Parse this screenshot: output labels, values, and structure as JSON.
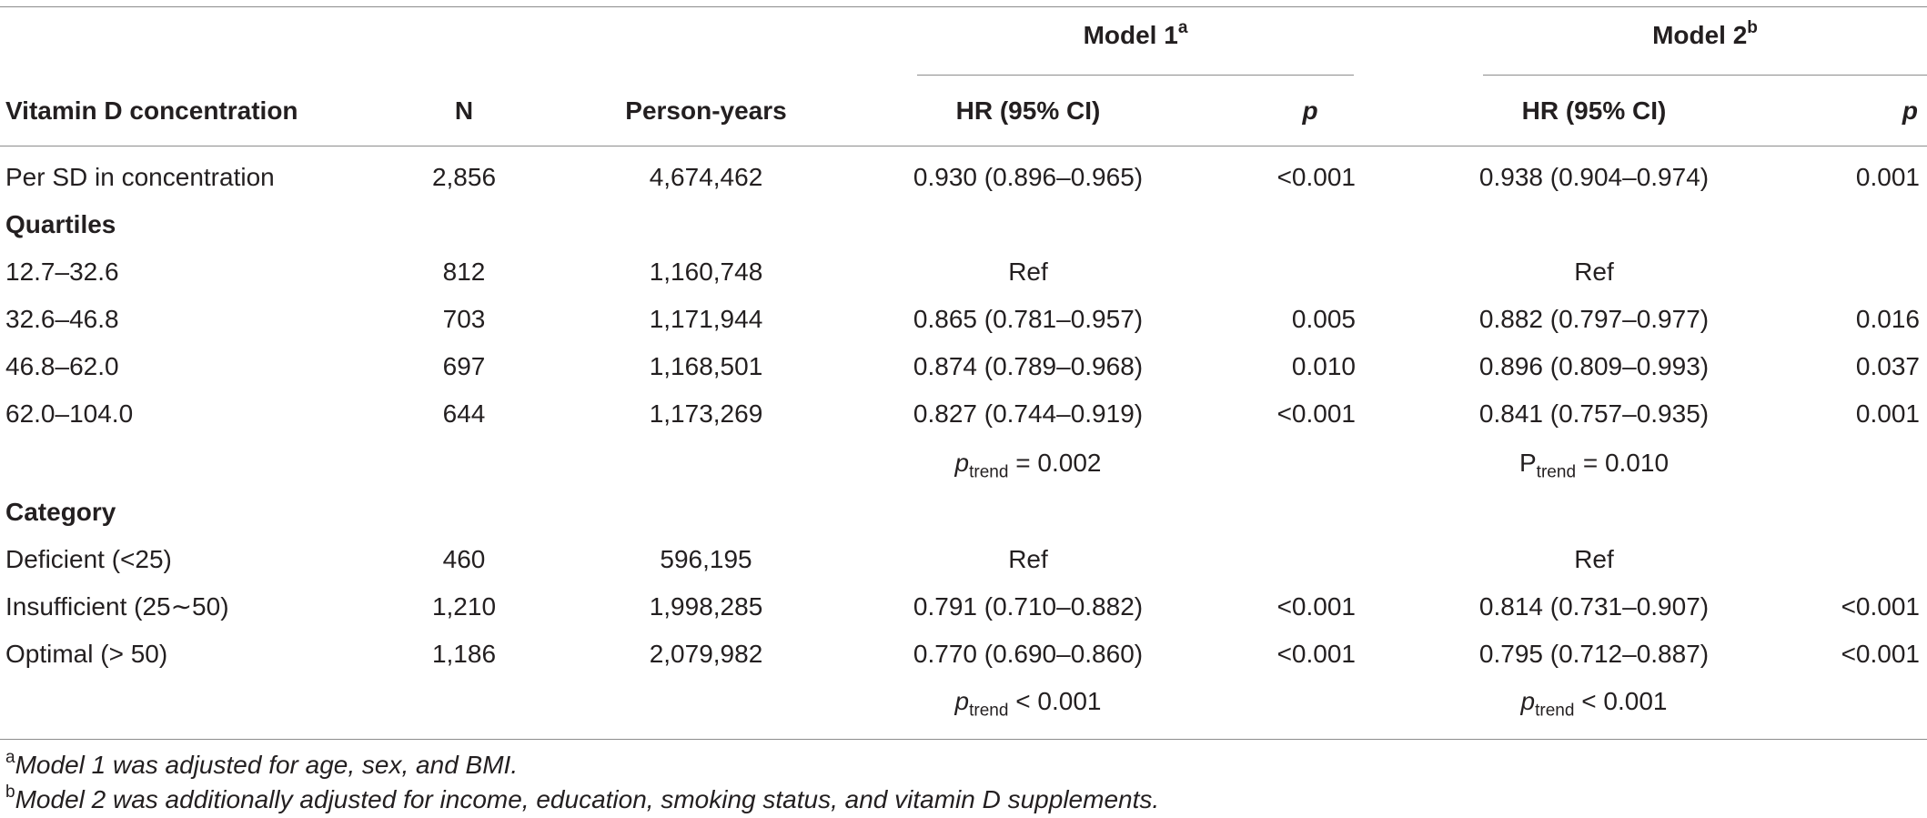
{
  "header": {
    "model1_title": "Model 1",
    "model1_sup": "a",
    "model2_title": "Model 2",
    "model2_sup": "b",
    "col_label": "Vitamin D concentration",
    "col_n": "N",
    "col_py": "Person-years",
    "col_hr1": "HR (95% CI)",
    "col_p1": "p",
    "col_hr2": "HR (95% CI)",
    "col_p2": "p"
  },
  "rows": [
    {
      "label": "Per SD in concentration",
      "n": "2,856",
      "py": "4,674,462",
      "hr1": "0.930 (0.896–0.965)",
      "p1": "<0.001",
      "hr2": "0.938 (0.904–0.974)",
      "p2": "0.001"
    },
    {
      "label": "Quartiles",
      "section": true
    },
    {
      "label": "12.7–32.6",
      "n": "812",
      "py": "1,160,748",
      "hr1": "Ref",
      "p1": "",
      "hr2": "Ref",
      "p2": ""
    },
    {
      "label": "32.6–46.8",
      "n": "703",
      "py": "1,171,944",
      "hr1": "0.865 (0.781–0.957)",
      "p1": "0.005",
      "hr2": "0.882 (0.797–0.977)",
      "p2": "0.016"
    },
    {
      "label": "46.8–62.0",
      "n": "697",
      "py": "1,168,501",
      "hr1": "0.874 (0.789–0.968)",
      "p1": "0.010",
      "hr2": "0.896 (0.809–0.993)",
      "p2": "0.037"
    },
    {
      "label": "62.0–104.0",
      "n": "644",
      "py": "1,173,269",
      "hr1": "0.827 (0.744–0.919)",
      "p1": "<0.001",
      "hr2": "0.841 (0.757–0.935)",
      "p2": "0.001"
    },
    {
      "trend": true,
      "t1_sym": "p",
      "t1_italic": true,
      "t1_sub": "trend",
      "t1_rest": " = 0.002",
      "t2_sym": "P",
      "t2_italic": false,
      "t2_sub": "trend",
      "t2_rest": " = 0.010"
    },
    {
      "label": "Category",
      "section": true
    },
    {
      "label": "Deficient (<25)",
      "n": "460",
      "py": "596,195",
      "hr1": "Ref",
      "p1": "",
      "hr2": "Ref",
      "p2": ""
    },
    {
      "label": "Insufficient (25∼50)",
      "n": "1,210",
      "py": "1,998,285",
      "hr1": "0.791 (0.710–0.882)",
      "p1": "<0.001",
      "hr2": "0.814 (0.731–0.907)",
      "p2": "<0.001"
    },
    {
      "label": "Optimal (> 50)",
      "n": "1,186",
      "py": "2,079,982",
      "hr1": "0.770 (0.690–0.860)",
      "p1": "<0.001",
      "hr2": "0.795 (0.712–0.887)",
      "p2": "<0.001"
    },
    {
      "trend": true,
      "t1_sym": "p",
      "t1_italic": true,
      "t1_sub": "trend",
      "t1_rest": " < 0.001",
      "t2_sym": "p",
      "t2_italic": true,
      "t2_sub": "trend",
      "t2_rest": " < 0.001"
    }
  ],
  "footnotes": [
    {
      "mark": "a",
      "text": "Model 1 was adjusted for age, sex, and BMI."
    },
    {
      "mark": "b",
      "text": "Model 2 was additionally adjusted for income, education, smoking status, and vitamin D supplements."
    }
  ]
}
